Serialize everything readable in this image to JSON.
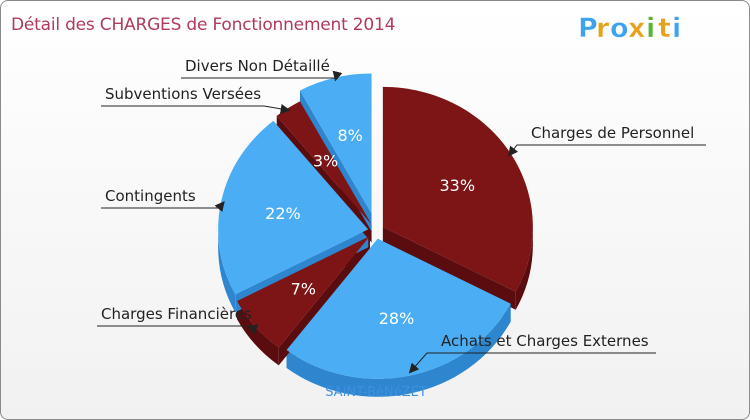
{
  "title": "Détail des CHARGES de Fonctionnement 2014",
  "brand": {
    "letters": [
      "P",
      "r",
      "o",
      "x",
      "i",
      "t",
      "i"
    ],
    "colors": [
      "#3da3f0",
      "#e8a21a",
      "#3da3f0",
      "#e8a21a",
      "#5bb332",
      "#e8a21a",
      "#3da3f0"
    ]
  },
  "place": "SAINT-BéNéZET",
  "colors": {
    "dark_red": "#7d1416",
    "dark_red_side": "#5b0c0e",
    "blue": "#4baef5",
    "blue_side": "#2e86cf",
    "title": "#b03a5c",
    "place": "#3f8fe0"
  },
  "chart_data": {
    "type": "pie",
    "title": "Détail des CHARGES de Fonctionnement 2014",
    "unit": "%",
    "slices": [
      {
        "label": "Charges de Personnel",
        "value": 33,
        "display": "33%",
        "color": "dark_red"
      },
      {
        "label": "Achats et Charges Externes",
        "value": 28,
        "display": "28%",
        "color": "blue"
      },
      {
        "label": "Charges Financières",
        "value": 7,
        "display": "7%",
        "color": "dark_red"
      },
      {
        "label": "Contingents",
        "value": 22,
        "display": "22%",
        "color": "blue"
      },
      {
        "label": "Subventions Versées",
        "value": 3,
        "display": "3%",
        "color": "dark_red"
      },
      {
        "label": "Divers Non Détaillé",
        "value": 8,
        "display": "8%",
        "color": "blue"
      }
    ]
  }
}
